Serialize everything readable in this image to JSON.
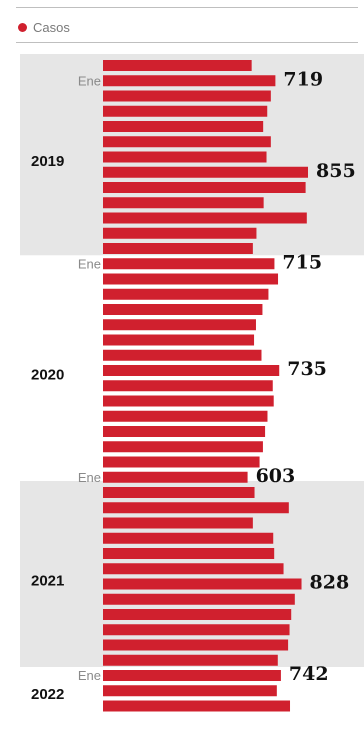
{
  "legend": {
    "label": "Casos",
    "color": "#d0202e"
  },
  "chart_data": {
    "type": "bar",
    "orientation": "horizontal",
    "bar_color": "#d0202e",
    "band_color": "#e6e6e6",
    "series": [
      {
        "name": "Casos",
        "values": [
          620,
          719,
          700,
          685,
          668,
          700,
          682,
          855,
          845,
          670,
          850,
          640,
          625,
          715,
          730,
          690,
          665,
          638,
          630,
          661,
          735,
          708,
          712,
          686,
          676,
          667,
          653,
          603,
          632,
          775,
          625,
          710,
          714,
          753,
          828,
          800,
          785,
          778,
          772,
          729,
          742,
          725,
          780
        ]
      }
    ],
    "years": [
      {
        "label": "2019",
        "start": 0,
        "count": 13,
        "band": true
      },
      {
        "label": "2020",
        "start": 13,
        "count": 15,
        "band": false
      },
      {
        "label": "2021",
        "start": 28,
        "count": 12,
        "band": true
      },
      {
        "label": "2022",
        "start": 40,
        "count": 3,
        "band": false
      }
    ],
    "month_label": "Ene",
    "annotations": [
      {
        "index": 1,
        "value": "719"
      },
      {
        "index": 7,
        "value": "855"
      },
      {
        "index": 13,
        "value": "715"
      },
      {
        "index": 20,
        "value": "735"
      },
      {
        "index": 27,
        "value": "603"
      },
      {
        "index": 34,
        "value": "828"
      },
      {
        "index": 40,
        "value": "742"
      }
    ],
    "ene_indices": [
      1,
      13,
      27,
      40
    ]
  }
}
